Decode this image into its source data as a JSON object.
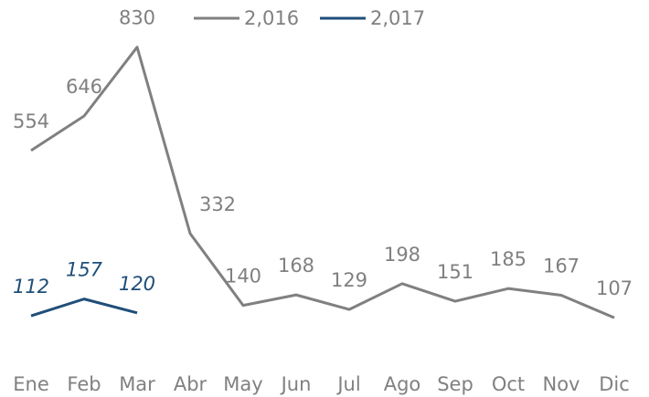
{
  "chart_data": {
    "type": "line",
    "categories": [
      "Ene",
      "Feb",
      "Mar",
      "Abr",
      "May",
      "Jun",
      "Jul",
      "Ago",
      "Sep",
      "Oct",
      "Nov",
      "Dic"
    ],
    "series": [
      {
        "name": "2,016",
        "color": "#808080",
        "values": [
          554,
          646,
          830,
          332,
          140,
          168,
          129,
          198,
          151,
          185,
          167,
          107
        ]
      },
      {
        "name": "2,017",
        "color": "#1f4e79",
        "values": [
          112,
          157,
          120,
          null,
          null,
          null,
          null,
          null,
          null,
          null,
          null,
          null
        ]
      }
    ],
    "legend": "top"
  }
}
